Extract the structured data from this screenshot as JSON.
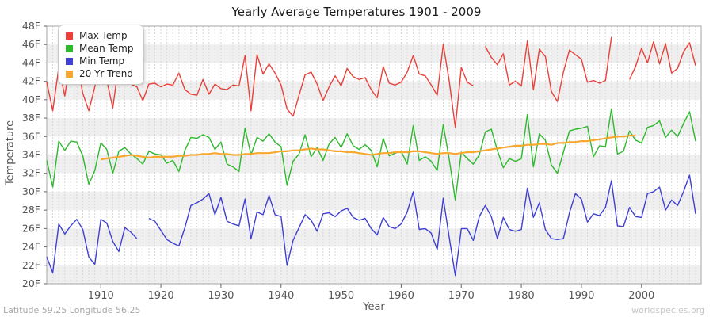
{
  "title": "Yearly Average Temperatures 1901 - 2009",
  "x_axis_label": "Year",
  "y_axis_label": "Temperature",
  "footer_left": "Latitude 59.25 Longitude 56.25",
  "footer_right": "worldspecies.org",
  "colors": {
    "max_temp": "#e9413a",
    "mean_temp": "#2db92d",
    "min_temp": "#3f3fd3",
    "trend": "#f8a82e",
    "band_gray": "#efefef",
    "band_white": "#ffffff",
    "grid_line": "#d7d7d7",
    "frame": "#a6a6a6",
    "tick": "#666666",
    "tick_text": "#555555",
    "title_text": "#1a1a1a"
  },
  "chart_data": {
    "type": "line",
    "title": "Yearly Average Temperatures 1901 - 2009",
    "xlabel": "Year",
    "ylabel": "Temperature",
    "ylim": [
      20,
      48
    ],
    "ytick_step": 2,
    "ytick_suffix": "F",
    "xticks": [
      1910,
      1920,
      1930,
      1940,
      1950,
      1960,
      1970,
      1980,
      1990,
      2000
    ],
    "grid": "yearly dashed vertical lines, alternating 2F horizontal bands",
    "legend_position": "top-left",
    "years": [
      1901,
      1902,
      1903,
      1904,
      1905,
      1906,
      1907,
      1908,
      1909,
      1910,
      1911,
      1912,
      1913,
      1914,
      1915,
      1916,
      1917,
      1918,
      1919,
      1920,
      1921,
      1922,
      1923,
      1924,
      1925,
      1926,
      1927,
      1928,
      1929,
      1930,
      1931,
      1932,
      1933,
      1934,
      1935,
      1936,
      1937,
      1938,
      1939,
      1940,
      1941,
      1942,
      1943,
      1944,
      1945,
      1946,
      1947,
      1948,
      1949,
      1950,
      1951,
      1952,
      1953,
      1954,
      1955,
      1956,
      1957,
      1958,
      1959,
      1960,
      1961,
      1962,
      1963,
      1964,
      1965,
      1966,
      1967,
      1968,
      1969,
      1970,
      1971,
      1972,
      1973,
      1974,
      1975,
      1976,
      1977,
      1978,
      1979,
      1980,
      1981,
      1982,
      1983,
      1984,
      1985,
      1986,
      1987,
      1988,
      1989,
      1990,
      1991,
      1992,
      1993,
      1994,
      1995,
      1996,
      1997,
      1998,
      1999,
      2000,
      2001,
      2002,
      2003,
      2004,
      2005,
      2006,
      2007,
      2008,
      2009
    ],
    "series": [
      {
        "name": "Max Temp",
        "color": "#e9413a",
        "values": [
          41.9,
          38.8,
          43.5,
          40.4,
          44.6,
          44.1,
          40.7,
          38.8,
          41.4,
          44.2,
          42.1,
          39.1,
          44.0,
          44.3,
          41.7,
          41.4,
          39.9,
          41.7,
          41.8,
          41.4,
          41.7,
          41.6,
          42.9,
          41.1,
          40.6,
          40.5,
          42.2,
          40.6,
          41.7,
          41.2,
          41.1,
          41.6,
          41.5,
          44.8,
          38.8,
          44.9,
          42.8,
          43.9,
          42.9,
          41.6,
          39.0,
          38.2,
          40.5,
          42.7,
          43.0,
          41.7,
          39.9,
          41.4,
          42.6,
          41.5,
          43.4,
          42.5,
          42.2,
          42.4,
          41.1,
          40.2,
          43.6,
          41.8,
          41.6,
          41.9,
          43.0,
          44.8,
          42.8,
          42.6,
          41.6,
          40.5,
          46.0,
          42.0,
          37.0,
          43.5,
          41.9,
          41.5,
          null,
          45.8,
          44.6,
          43.8,
          45.0,
          41.6,
          42.0,
          41.5,
          46.4,
          41.1,
          45.5,
          44.7,
          40.9,
          39.8,
          43.0,
          45.4,
          44.9,
          44.4,
          41.9,
          42.1,
          41.8,
          42.1,
          46.8,
          null,
          null,
          42.2,
          43.6,
          45.6,
          44.0,
          46.3,
          43.9,
          46.1,
          42.9,
          43.4,
          45.2,
          46.2,
          43.7
        ]
      },
      {
        "name": "Mean Temp",
        "color": "#2db92d",
        "values": [
          33.4,
          30.5,
          35.5,
          34.5,
          35.5,
          35.4,
          33.9,
          30.8,
          32.3,
          35.3,
          34.6,
          32.0,
          34.4,
          34.8,
          34.1,
          33.6,
          33.0,
          34.4,
          34.1,
          34.0,
          33.1,
          33.4,
          32.2,
          34.5,
          35.9,
          35.8,
          36.2,
          35.9,
          34.6,
          35.4,
          33.0,
          32.7,
          32.2,
          36.9,
          34.0,
          35.9,
          35.5,
          36.3,
          35.4,
          34.9,
          30.7,
          33.3,
          34.1,
          36.2,
          33.8,
          34.8,
          33.4,
          35.2,
          35.9,
          34.8,
          36.3,
          35.0,
          34.6,
          35.1,
          34.5,
          32.7,
          35.8,
          33.9,
          34.2,
          34.4,
          33.0,
          37.2,
          33.4,
          33.8,
          33.3,
          32.3,
          37.3,
          33.5,
          29.1,
          34.3,
          33.6,
          33.0,
          34.0,
          36.5,
          36.8,
          34.5,
          32.6,
          33.6,
          33.3,
          33.6,
          38.4,
          32.7,
          36.3,
          35.6,
          32.9,
          32.0,
          34.3,
          36.6,
          36.8,
          36.9,
          37.1,
          33.8,
          35.0,
          34.9,
          39.0,
          34.1,
          34.4,
          36.6,
          35.6,
          35.3,
          37.0,
          37.2,
          37.7,
          35.9,
          36.7,
          36.0,
          37.4,
          38.7,
          35.5
        ]
      },
      {
        "name": "Min Temp",
        "color": "#3f3fd3",
        "values": [
          22.9,
          21.2,
          26.5,
          25.4,
          26.3,
          27.0,
          25.9,
          22.9,
          22.1,
          27.0,
          26.6,
          24.6,
          23.5,
          26.1,
          25.6,
          24.9,
          null,
          27.1,
          26.8,
          25.8,
          24.8,
          24.4,
          24.1,
          26.1,
          28.5,
          28.8,
          29.2,
          29.8,
          27.5,
          29.4,
          26.8,
          26.5,
          26.3,
          29.2,
          24.9,
          27.8,
          27.5,
          29.6,
          27.5,
          27.3,
          22.0,
          24.7,
          26.1,
          27.5,
          26.9,
          25.7,
          27.6,
          27.7,
          27.3,
          27.9,
          28.2,
          27.2,
          26.9,
          27.1,
          26.0,
          25.3,
          27.2,
          26.2,
          26.0,
          26.5,
          27.8,
          30.0,
          25.9,
          26.0,
          25.5,
          23.7,
          29.3,
          25.0,
          20.9,
          26.0,
          26.0,
          24.7,
          27.3,
          28.5,
          27.3,
          24.9,
          27.2,
          25.9,
          25.7,
          25.9,
          30.4,
          27.2,
          28.8,
          25.9,
          24.9,
          24.8,
          24.9,
          27.7,
          29.8,
          29.2,
          26.7,
          27.6,
          27.4,
          28.3,
          31.2,
          26.3,
          26.2,
          28.3,
          27.3,
          27.2,
          29.8,
          30.0,
          30.5,
          28.0,
          29.1,
          28.5,
          30.0,
          31.8,
          27.6
        ]
      },
      {
        "name": "20 Yr Trend",
        "color": "#f8a82e",
        "values": [
          null,
          null,
          null,
          null,
          null,
          null,
          null,
          null,
          null,
          33.5,
          33.6,
          33.7,
          33.8,
          33.9,
          34.0,
          33.9,
          33.8,
          33.7,
          33.8,
          33.8,
          33.8,
          33.8,
          33.9,
          33.9,
          34.0,
          34.0,
          34.1,
          34.1,
          34.2,
          34.1,
          34.1,
          34.0,
          34.0,
          34.1,
          34.1,
          34.2,
          34.2,
          34.2,
          34.3,
          34.4,
          34.4,
          34.5,
          34.5,
          34.6,
          34.7,
          34.6,
          34.6,
          34.5,
          34.4,
          34.4,
          34.3,
          34.3,
          34.2,
          34.1,
          34.0,
          34.1,
          34.2,
          34.2,
          34.3,
          34.3,
          34.3,
          34.4,
          34.4,
          34.3,
          34.2,
          34.1,
          34.2,
          34.2,
          34.1,
          34.2,
          34.3,
          34.3,
          34.4,
          34.5,
          34.6,
          34.7,
          34.8,
          34.9,
          35.0,
          35.0,
          35.1,
          35.1,
          35.2,
          35.2,
          35.1,
          35.3,
          35.3,
          35.4,
          35.4,
          35.5,
          35.5,
          35.6,
          35.7,
          35.8,
          35.9,
          36.0,
          36.0,
          36.1,
          36.1,
          null,
          null,
          null,
          null,
          null,
          null,
          null,
          null,
          null,
          null
        ]
      }
    ]
  }
}
